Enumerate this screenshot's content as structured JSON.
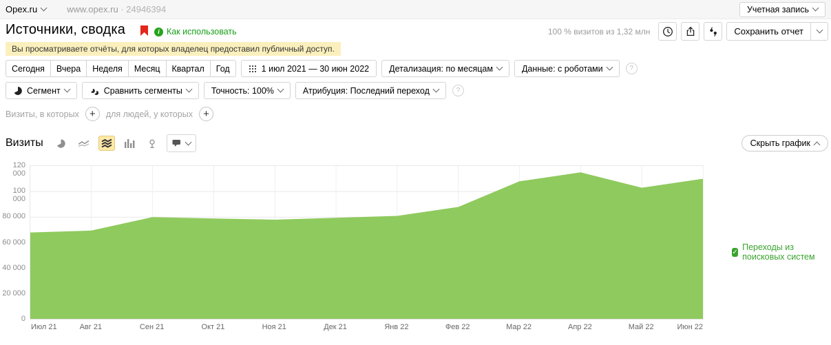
{
  "icons": {
    "info_glyph": "i",
    "help_glyph": "?",
    "plus_glyph": "+",
    "check_glyph": "✓",
    "separator_dot": "·"
  },
  "colors": {
    "area_green": "#8fca5e",
    "legend_green": "#3aa32e",
    "link_green": "#17a117",
    "bookmark_red": "#e3261b",
    "notice_bg": "#fbf0bd",
    "selected_tool_bg": "#ffe9a6",
    "info_circle_green": "#28a31e"
  },
  "topbar": {
    "counter_name": "Opex.ru",
    "site": "www.opex.ru",
    "counter_id": "24946394",
    "account_button": "Учетная запись"
  },
  "header": {
    "title": "Источники, сводка",
    "how_to_use": "Как использовать",
    "sample_info": "100 % визитов из 1,32 млн",
    "save_report": "Сохранить отчет"
  },
  "notice": "Вы просматриваете отчёты, для которых владелец предоставил публичный доступ.",
  "filters": {
    "periods": [
      "Сегодня",
      "Вчера",
      "Неделя",
      "Месяц",
      "Квартал",
      "Год"
    ],
    "date_range": "1 июл 2021 — 30 июн 2022",
    "detalization": "Детализация: по месяцам",
    "data_mode": "Данные: с роботами",
    "segment": "Сегмент",
    "compare_segments": "Сравнить сегменты",
    "accuracy": "Точность: 100%",
    "attribution": "Атрибуция: Последний переход"
  },
  "segment_builder": {
    "visits_condition_label": "Визиты, в которых",
    "people_condition_label": "для людей, у которых"
  },
  "chart_section": {
    "metric_title": "Визиты",
    "hide_chart_button": "Скрыть график",
    "selected_view": "stacked-area"
  },
  "chart_data": {
    "type": "area",
    "title": "Визиты",
    "categories": [
      "Июл 21",
      "Авг 21",
      "Сен 21",
      "Окт 21",
      "Ноя 21",
      "Дек 21",
      "Янв 22",
      "Фев 22",
      "Мар 22",
      "Апр 22",
      "Май 22",
      "Июн 22"
    ],
    "series": [
      {
        "name": "Переходы из поисковых систем",
        "values": [
          68000,
          69500,
          80000,
          79000,
          78000,
          79500,
          81000,
          88000,
          108000,
          115000,
          103000,
          110000
        ],
        "color": "#8fca5e"
      }
    ],
    "xlabel": "",
    "ylabel": "",
    "ylim": [
      0,
      120000
    ],
    "yticks": [
      0,
      20000,
      40000,
      60000,
      80000,
      100000,
      120000
    ],
    "ytick_labels": [
      "0",
      "20 000",
      "40 000",
      "60 000",
      "80 000",
      "100 000",
      "120 000"
    ],
    "grid": true,
    "legend_position": "right"
  }
}
